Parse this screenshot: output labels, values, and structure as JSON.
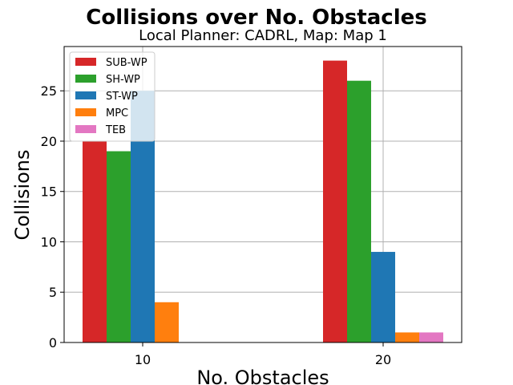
{
  "chart_data": {
    "type": "bar",
    "title": "Collisions over No. Obstacles",
    "subtitle": "Local Planner: CADRL, Map: Map 1",
    "xlabel": "No. Obstacles",
    "ylabel": "Collisions",
    "categories": [
      "10",
      "20"
    ],
    "ylim": [
      0,
      29.4
    ],
    "yticks": [
      0,
      5,
      10,
      15,
      20,
      25
    ],
    "grid": true,
    "legend_position": "top-left",
    "series": [
      {
        "name": "SUB-WP",
        "color": "#d62728",
        "values": [
          20,
          28
        ]
      },
      {
        "name": "SH-WP",
        "color": "#2ca02c",
        "values": [
          19,
          26
        ]
      },
      {
        "name": "ST-WP",
        "color": "#1f77b4",
        "values": [
          25,
          9
        ]
      },
      {
        "name": "MPC",
        "color": "#ff7f0e",
        "values": [
          4,
          1
        ]
      },
      {
        "name": "TEB",
        "color": "#e377c2",
        "values": [
          0,
          1
        ]
      }
    ]
  }
}
